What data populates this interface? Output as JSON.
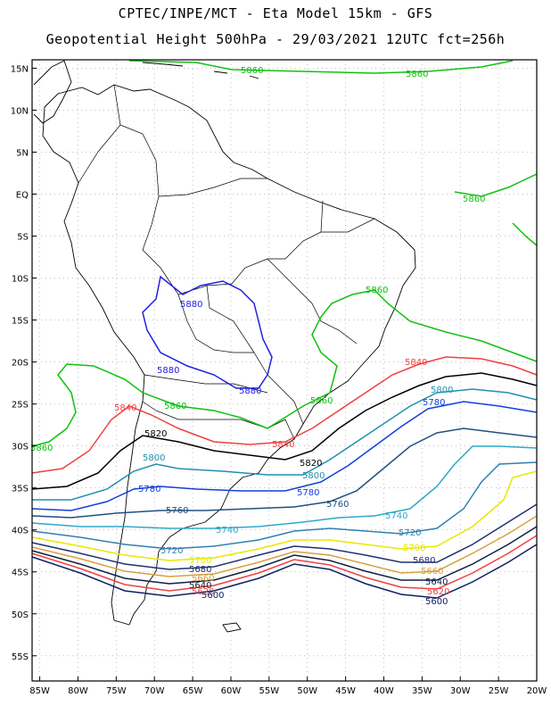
{
  "header": {
    "line1": "CPTEC/INPE/MCT -  Eta Model 15km - GFS",
    "line2": "Geopotential Height 500hPa - 29/03/2021 12UTC fct=256h"
  },
  "axes": {
    "lat_labels": [
      "15N",
      "10N",
      "5N",
      "EQ",
      "5S",
      "10S",
      "15S",
      "20S",
      "25S",
      "30S",
      "35S",
      "40S",
      "45S",
      "50S",
      "55S"
    ],
    "lat_values": [
      15,
      10,
      5,
      0,
      -5,
      -10,
      -15,
      -20,
      -25,
      -30,
      -35,
      -40,
      -45,
      -50,
      -55
    ],
    "lon_labels": [
      "85W",
      "80W",
      "75W",
      "70W",
      "65W",
      "60W",
      "55W",
      "50W",
      "45W",
      "40W",
      "35W",
      "30W",
      "25W",
      "20W"
    ],
    "lon_values": [
      -85,
      -80,
      -75,
      -70,
      -65,
      -60,
      -55,
      -50,
      -45,
      -40,
      -35,
      -30,
      -25,
      -20
    ],
    "lon_range": [
      -86,
      -20
    ],
    "lat_range": [
      -58,
      16
    ]
  },
  "contours": [
    {
      "value": "5880",
      "color": "#2020e0",
      "labels": [
        "5880",
        "5880",
        "5880"
      ]
    },
    {
      "value": "5860",
      "color": "#10c010",
      "labels": [
        "5860",
        "5860",
        "5860",
        "5860",
        "5860",
        "5860",
        "5860"
      ]
    },
    {
      "value": "5840",
      "color": "#f04040",
      "labels": [
        "5840",
        "5840",
        "5840"
      ]
    },
    {
      "value": "5820",
      "color": "#000000",
      "labels": [
        "5820",
        "5820"
      ]
    },
    {
      "value": "5800",
      "color": "#2090b0",
      "labels": [
        "5800",
        "5800",
        "5800"
      ]
    },
    {
      "value": "5780",
      "color": "#1040e0",
      "labels": [
        "5780",
        "5780",
        "5780"
      ]
    },
    {
      "value": "5760",
      "color": "#205080",
      "labels": [
        "5760",
        "5760"
      ]
    },
    {
      "value": "5740",
      "color": "#30a8c8",
      "labels": [
        "5740",
        "5740"
      ]
    },
    {
      "value": "5720",
      "color": "#3080b0",
      "labels": [
        "5720",
        "5720"
      ]
    },
    {
      "value": "5700",
      "color": "#e8e800",
      "labels": [
        "5700",
        "5700"
      ]
    },
    {
      "value": "5680",
      "color": "#203070",
      "labels": [
        "5680",
        "5680"
      ]
    },
    {
      "value": "5660",
      "color": "#d8a040",
      "labels": [
        "5660",
        "5660"
      ]
    },
    {
      "value": "5640",
      "color": "#102040",
      "labels": [
        "5640",
        "5640"
      ]
    },
    {
      "value": "5620",
      "color": "#f04040",
      "labels": [
        "5620",
        "5620"
      ]
    },
    {
      "value": "5600",
      "color": "#102060",
      "labels": [
        "5600",
        "5600"
      ]
    }
  ]
}
